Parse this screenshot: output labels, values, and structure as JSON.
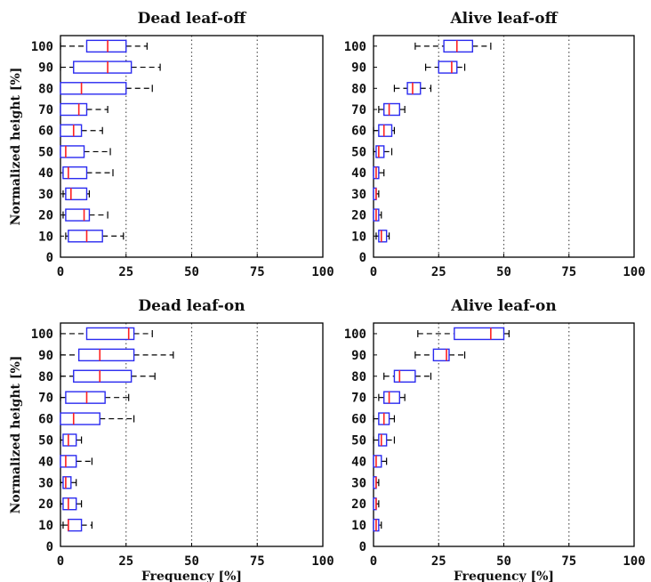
{
  "chart_data": [
    {
      "type": "boxplot",
      "title": "Dead leaf-off",
      "xlabel": "",
      "ylabel": "Normalized height [%]",
      "xlim": [
        0,
        100
      ],
      "x_ticks": [
        "0",
        "25",
        "50",
        "75",
        "100"
      ],
      "y_ticks": [
        "0",
        "10",
        "20",
        "30",
        "40",
        "50",
        "60",
        "70",
        "80",
        "90",
        "100"
      ],
      "grid": "dotted vertical at 50, 75",
      "boxes": [
        {
          "height": 10,
          "whisker_low": 2,
          "q1": 3,
          "median": 10,
          "q3": 16,
          "whisker_high": 24
        },
        {
          "height": 20,
          "whisker_low": 1,
          "q1": 2,
          "median": 9,
          "q3": 11,
          "whisker_high": 18
        },
        {
          "height": 30,
          "whisker_low": 1,
          "q1": 2,
          "median": 4,
          "q3": 10,
          "whisker_high": 11
        },
        {
          "height": 40,
          "whisker_low": 1,
          "q1": 1,
          "median": 3,
          "q3": 10,
          "whisker_high": 20
        },
        {
          "height": 50,
          "whisker_low": 0,
          "q1": 0,
          "median": 2,
          "q3": 9,
          "whisker_high": 19
        },
        {
          "height": 60,
          "whisker_low": 0,
          "q1": 0,
          "median": 5,
          "q3": 8,
          "whisker_high": 16
        },
        {
          "height": 70,
          "whisker_low": 0,
          "q1": 0,
          "median": 7,
          "q3": 10,
          "whisker_high": 18
        },
        {
          "height": 80,
          "whisker_low": 0,
          "q1": 0,
          "median": 8,
          "q3": 25,
          "whisker_high": 35
        },
        {
          "height": 90,
          "whisker_low": 0,
          "q1": 5,
          "median": 18,
          "q3": 27,
          "whisker_high": 38
        },
        {
          "height": 100,
          "whisker_low": 0,
          "q1": 10,
          "median": 18,
          "q3": 25,
          "whisker_high": 33
        }
      ]
    },
    {
      "type": "boxplot",
      "title": "Alive leaf-off",
      "xlabel": "",
      "ylabel": "",
      "xlim": [
        0,
        100
      ],
      "x_ticks": [
        "0",
        "25",
        "50",
        "75",
        "100"
      ],
      "y_ticks": [
        "0",
        "10",
        "20",
        "30",
        "40",
        "50",
        "60",
        "70",
        "80",
        "90",
        "100"
      ],
      "grid": "dotted vertical at 25, 50, 75",
      "boxes": [
        {
          "height": 10,
          "whisker_low": 1,
          "q1": 2,
          "median": 3,
          "q3": 5,
          "whisker_high": 6
        },
        {
          "height": 20,
          "whisker_low": 0,
          "q1": 0,
          "median": 1,
          "q3": 2,
          "whisker_high": 3
        },
        {
          "height": 30,
          "whisker_low": 0,
          "q1": 0,
          "median": 1,
          "q3": 1,
          "whisker_high": 2
        },
        {
          "height": 40,
          "whisker_low": 0,
          "q1": 0,
          "median": 1,
          "q3": 2,
          "whisker_high": 4
        },
        {
          "height": 50,
          "whisker_low": 0,
          "q1": 1,
          "median": 2,
          "q3": 4,
          "whisker_high": 7
        },
        {
          "height": 60,
          "whisker_low": 0,
          "q1": 2,
          "median": 4,
          "q3": 7,
          "whisker_high": 8
        },
        {
          "height": 70,
          "whisker_low": 2,
          "q1": 4,
          "median": 6,
          "q3": 10,
          "whisker_high": 12
        },
        {
          "height": 80,
          "whisker_low": 8,
          "q1": 13,
          "median": 15,
          "q3": 18,
          "whisker_high": 22
        },
        {
          "height": 90,
          "whisker_low": 20,
          "q1": 25,
          "median": 30,
          "q3": 32,
          "whisker_high": 35
        },
        {
          "height": 100,
          "whisker_low": 16,
          "q1": 27,
          "median": 32,
          "q3": 38,
          "whisker_high": 45
        }
      ]
    },
    {
      "type": "boxplot",
      "title": "Dead leaf-on",
      "xlabel": "Frequency [%]",
      "ylabel": "Normalized height [%]",
      "xlim": [
        0,
        100
      ],
      "x_ticks": [
        "0",
        "25",
        "50",
        "75",
        "100"
      ],
      "y_ticks": [
        "0",
        "10",
        "20",
        "30",
        "40",
        "50",
        "60",
        "70",
        "80",
        "90",
        "100"
      ],
      "grid": "dotted vertical at 50, 75",
      "boxes": [
        {
          "height": 10,
          "whisker_low": 1,
          "q1": 3,
          "median": 3,
          "q3": 8,
          "whisker_high": 12
        },
        {
          "height": 20,
          "whisker_low": 0,
          "q1": 1,
          "median": 3,
          "q3": 6,
          "whisker_high": 8
        },
        {
          "height": 30,
          "whisker_low": 0,
          "q1": 1,
          "median": 2,
          "q3": 4,
          "whisker_high": 6
        },
        {
          "height": 40,
          "whisker_low": 0,
          "q1": 0,
          "median": 2,
          "q3": 6,
          "whisker_high": 12
        },
        {
          "height": 50,
          "whisker_low": 0,
          "q1": 1,
          "median": 3,
          "q3": 6,
          "whisker_high": 8
        },
        {
          "height": 60,
          "whisker_low": 0,
          "q1": 0,
          "median": 5,
          "q3": 15,
          "whisker_high": 28
        },
        {
          "height": 70,
          "whisker_low": 0,
          "q1": 2,
          "median": 10,
          "q3": 17,
          "whisker_high": 26
        },
        {
          "height": 80,
          "whisker_low": 0,
          "q1": 5,
          "median": 15,
          "q3": 27,
          "whisker_high": 36
        },
        {
          "height": 90,
          "whisker_low": 0,
          "q1": 7,
          "median": 15,
          "q3": 28,
          "whisker_high": 43
        },
        {
          "height": 100,
          "whisker_low": 0,
          "q1": 10,
          "median": 26,
          "q3": 28,
          "whisker_high": 35
        }
      ]
    },
    {
      "type": "boxplot",
      "title": "Alive leaf-on",
      "xlabel": "Frequency [%]",
      "ylabel": "",
      "xlim": [
        0,
        100
      ],
      "x_ticks": [
        "0",
        "25",
        "50",
        "75",
        "100"
      ],
      "y_ticks": [
        "0",
        "10",
        "20",
        "30",
        "40",
        "50",
        "60",
        "70",
        "80",
        "90",
        "100"
      ],
      "grid": "dotted vertical at 25, 50, 75",
      "boxes": [
        {
          "height": 10,
          "whisker_low": 0,
          "q1": 0,
          "median": 1,
          "q3": 2,
          "whisker_high": 3
        },
        {
          "height": 20,
          "whisker_low": 0,
          "q1": 0,
          "median": 1,
          "q3": 1,
          "whisker_high": 2
        },
        {
          "height": 30,
          "whisker_low": 0,
          "q1": 0,
          "median": 1,
          "q3": 1,
          "whisker_high": 2
        },
        {
          "height": 40,
          "whisker_low": 0,
          "q1": 0,
          "median": 1,
          "q3": 3,
          "whisker_high": 5
        },
        {
          "height": 50,
          "whisker_low": 0,
          "q1": 2,
          "median": 3,
          "q3": 5,
          "whisker_high": 8
        },
        {
          "height": 60,
          "whisker_low": 0,
          "q1": 2,
          "median": 4,
          "q3": 6,
          "whisker_high": 8
        },
        {
          "height": 70,
          "whisker_low": 2,
          "q1": 4,
          "median": 6,
          "q3": 10,
          "whisker_high": 12
        },
        {
          "height": 80,
          "whisker_low": 4,
          "q1": 8,
          "median": 10,
          "q3": 16,
          "whisker_high": 22
        },
        {
          "height": 90,
          "whisker_low": 16,
          "q1": 23,
          "median": 28,
          "q3": 29,
          "whisker_high": 35
        },
        {
          "height": 100,
          "whisker_low": 17,
          "q1": 31,
          "median": 45,
          "q3": 50,
          "whisker_high": 52
        }
      ]
    }
  ],
  "colors": {
    "box": "#2b2bf0",
    "median": "#ff2020",
    "whisker": "#000000",
    "grid": "#555555",
    "axis": "#000000"
  }
}
